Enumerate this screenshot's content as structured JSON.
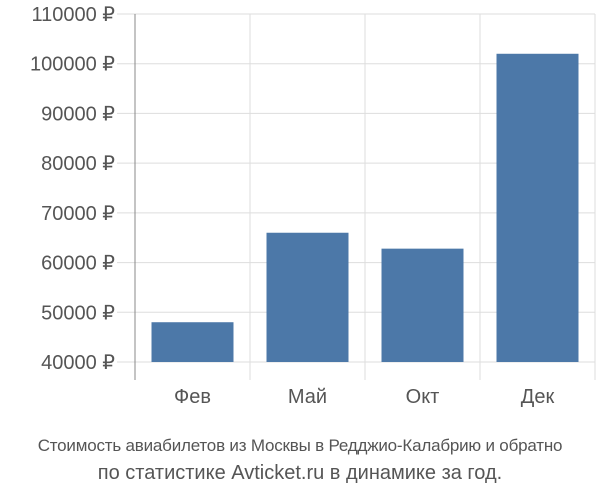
{
  "chart_data": {
    "type": "bar",
    "categories": [
      "Фев",
      "Май",
      "Окт",
      "Дек"
    ],
    "values": [
      48000,
      66000,
      62800,
      102000
    ],
    "ylim": [
      40000,
      110000
    ],
    "ytick_step": 10000,
    "currency_suffix": "₽",
    "grid": true,
    "bar_color": "#4c78a8",
    "grid_color": "#dddddd",
    "axis_color": "#888888",
    "text_color": "#555555"
  },
  "caption": {
    "line1": "Стоимость авиабилетов из Москвы в Редджио-Калабрию и обратно",
    "line2": "по статистике Avticket.ru в динамике за год."
  }
}
